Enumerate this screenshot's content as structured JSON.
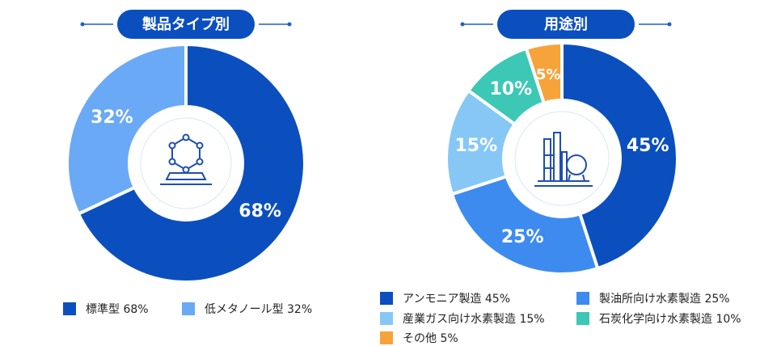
{
  "chart_data": [
    {
      "type": "pie",
      "title": "製品タイプ別",
      "categories": [
        "標準型",
        "低メタノール型"
      ],
      "values": [
        68,
        32
      ],
      "value_labels": [
        "68%",
        "32%"
      ],
      "legend_labels": [
        "標準型  68%",
        "低メタノール型  32%"
      ],
      "colors": [
        "#0b4fbf",
        "#6aa9f5"
      ],
      "legend": "bottom",
      "center_icon": "hexagon-molecule-icon"
    },
    {
      "type": "pie",
      "title": "用途別",
      "categories": [
        "アンモニア製造",
        "製油所向け水素製造",
        "産業ガス向け水素製造",
        "石炭化学向け水素製造",
        "その他"
      ],
      "values": [
        45,
        25,
        15,
        10,
        5
      ],
      "value_labels": [
        "45%",
        "25%",
        "15%",
        "10%",
        "5%"
      ],
      "legend_labels": [
        "アンモニア製造  45%",
        "製油所向け水素製造  25%",
        "産業ガス向け水素製造  15%",
        "石炭化学向け水素製造  10%",
        "その他  5%"
      ],
      "colors": [
        "#0b4fbf",
        "#3d8bef",
        "#86c7f6",
        "#3cc8b4",
        "#f7a33b"
      ],
      "legend": "bottom",
      "center_icon": "refinery-plant-icon"
    }
  ]
}
